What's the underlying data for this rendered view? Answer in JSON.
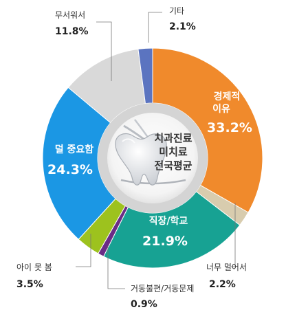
{
  "chart_data": {
    "type": "pie",
    "variant": "donut",
    "center_text": [
      "치과진료",
      "미치료",
      "전국평균"
    ],
    "unit": "%",
    "slices": [
      {
        "label": "경제적\n이유",
        "value": 33.2,
        "color": "#f08a2c",
        "label_position": "inside"
      },
      {
        "label": "너무 멀어서",
        "value": 2.2,
        "color": "#d8ccae",
        "label_position": "outside"
      },
      {
        "label": "직장/학교",
        "value": 21.9,
        "color": "#17a293",
        "label_position": "inside"
      },
      {
        "label": "거동불편/거동문제",
        "value": 0.9,
        "color": "#6a2c86",
        "label_position": "outside"
      },
      {
        "label": "아이 못 봄",
        "value": 3.5,
        "color": "#9dc21e",
        "label_position": "outside"
      },
      {
        "label": "덜 중요함",
        "value": 24.3,
        "color": "#1b97e4",
        "label_position": "inside"
      },
      {
        "label": "무서워서",
        "value": 11.8,
        "color": "#d9d9d9",
        "label_position": "outside"
      },
      {
        "label": "기타",
        "value": 2.1,
        "color": "#5b74c0",
        "label_position": "outside"
      }
    ]
  },
  "center_icon": "tooth-icon"
}
